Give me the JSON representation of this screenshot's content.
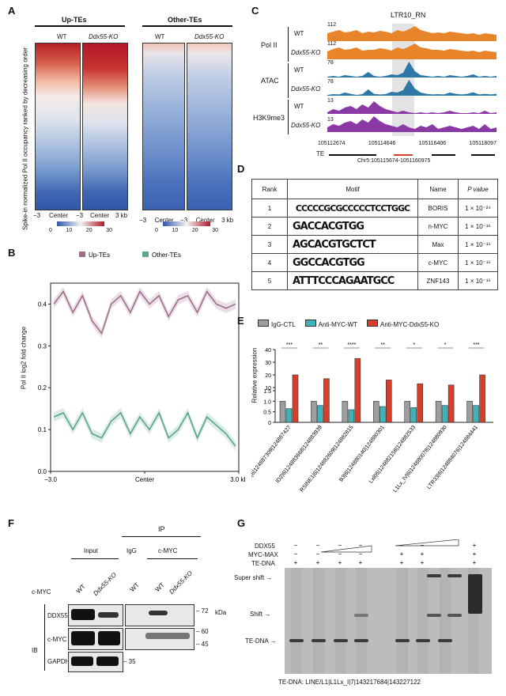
{
  "panels": {
    "A": "A",
    "B": "B",
    "C": "C",
    "D": "D",
    "E": "E",
    "F": "F",
    "G": "G"
  },
  "panelA": {
    "group_up": "Up-TEs",
    "group_other": "Other-TEs",
    "wt": "WT",
    "ko": "Ddx55-KO",
    "ylabel": "Spike-in normalized Pol II occupancy ranked by decreasing order",
    "axis_left": "−3",
    "axis_center": "Center",
    "axis_right": "3 kb",
    "axis_mid": "−3",
    "colorbar_up": [
      "0",
      "10",
      "20",
      "30"
    ],
    "colorbar_other": [
      "0",
      "10",
      "20",
      "30"
    ],
    "colors": {
      "high": "#b2182b",
      "low": "#2f58a8",
      "mid": "#f2f2f2"
    }
  },
  "panelB": {
    "legend": [
      "Up-TEs",
      "Other-TEs"
    ],
    "ylabel": "Pol II log2 fold change",
    "colors": {
      "up": "#a06e8c",
      "other": "#5aa38c"
    }
  },
  "panelC": {
    "title": "LTR10_RN",
    "groups": [
      "Pol II",
      "ATAC",
      "H3K9me3"
    ],
    "wt": "WT",
    "ko": "Ddx55-KO",
    "scales": [
      "112",
      "112",
      "78",
      "78",
      "13",
      "13"
    ],
    "coords": [
      "105112674",
      "105114646",
      "105116406",
      "105118097"
    ],
    "te": "TE",
    "region": "Chr5:105115674-1051160975",
    "colors": {
      "pol2": "#e8852b",
      "atac": "#2e78a8",
      "h3k9": "#8b3aa5"
    }
  },
  "panelD": {
    "headers": [
      "Rank",
      "Motif",
      "Name",
      "P value"
    ],
    "rows": [
      {
        "rank": "1",
        "motif": "CCCCCGCGCCCCCTCCTGGC",
        "name": "BORIS",
        "p": "1 × 10⁻²⁴"
      },
      {
        "rank": "2",
        "motif": "GACCACGTGG",
        "name": "n-MYC",
        "p": "1 × 10⁻¹⁶"
      },
      {
        "rank": "3",
        "motif": "AGCACGTGCTCT",
        "name": "Max",
        "p": "1 × 10⁻¹⁵"
      },
      {
        "rank": "4",
        "motif": "GGCCACGTGG",
        "name": "c-MYC",
        "p": "1 × 10⁻¹⁵"
      },
      {
        "rank": "5",
        "motif": "ATTTCCCAGAATGCC",
        "name": "ZNF143",
        "p": "1 × 10⁻¹⁵"
      }
    ]
  },
  "panelE": {
    "legend": [
      "IgG-CTL",
      "Anti-MYC-WT",
      "Anti-MYC-Ddx55-KO"
    ],
    "ylabel": "Relative expression",
    "colors": {
      "igg": "#9e9e9e",
      "wt": "#3fb3b8",
      "ko": "#d4402c"
    }
  },
  "panelF": {
    "ip": "IP",
    "input": "Input",
    "igg": "IgG",
    "cmyc": "c-MYC",
    "row_cmyc": "c-MYC",
    "wt": "WT",
    "ko": "Ddx55-KO",
    "ib": "IB",
    "rows": [
      "DDX55",
      "c-MYC",
      "GAPDH"
    ],
    "markers": [
      "72",
      "60",
      "45",
      "35"
    ],
    "kda": "kDa"
  },
  "panelG": {
    "labels": [
      "DDX55",
      "MYC-MAX",
      "TE-DNA"
    ],
    "super_shift": "Super shift",
    "shift": "Shift",
    "te_dna": "TE-DNA",
    "footer": "TE-DNA: LINE/L1|L1Lx_I|7|143217684|143227122"
  },
  "chart_data": [
    {
      "type": "line",
      "panel": "B",
      "x_ticks": [
        "−3.0",
        "Center",
        "3.0 kb"
      ],
      "ylim": [
        0.0,
        0.45
      ],
      "y_ticks": [
        "0.0",
        "0.1",
        "0.2",
        "0.3",
        "0.4"
      ],
      "series": [
        {
          "name": "Up-TEs",
          "values": [
            0.4,
            0.43,
            0.38,
            0.42,
            0.36,
            0.33,
            0.4,
            0.42,
            0.38,
            0.43,
            0.4,
            0.42,
            0.37,
            0.41,
            0.42,
            0.38,
            0.43,
            0.4,
            0.39,
            0.4
          ]
        },
        {
          "name": "Other-TEs",
          "values": [
            0.13,
            0.14,
            0.1,
            0.14,
            0.09,
            0.08,
            0.12,
            0.14,
            0.09,
            0.13,
            0.1,
            0.14,
            0.08,
            0.1,
            0.14,
            0.08,
            0.13,
            0.11,
            0.09,
            0.06
          ]
        }
      ]
    },
    {
      "type": "bar",
      "panel": "E",
      "categories": [
        "PB1|6|124887309|124887427",
        "ID2|6|124883668|124883939",
        "RSINE1|6|124882609|124882815",
        "B3|6|124880140|124880301",
        "Lx8|6|124882158|124882533",
        "L1Lx_IV|6|124880078|124880930",
        "LTR33|6|124884076|124884441"
      ],
      "significance": [
        "***",
        "**",
        "****",
        "**",
        "*",
        "*",
        "***"
      ],
      "ylim": [
        0,
        50
      ],
      "y_ticks": [
        "0",
        "0.5",
        "1.0",
        "1.5",
        "10",
        "20",
        "30",
        "40"
      ],
      "series": [
        {
          "name": "IgG-CTL",
          "values": [
            1.0,
            1.0,
            1.0,
            1.0,
            1.0,
            1.0,
            1.0
          ]
        },
        {
          "name": "Anti-MYC-WT",
          "values": [
            0.65,
            0.8,
            0.6,
            0.75,
            0.7,
            0.8,
            0.8
          ]
        },
        {
          "name": "Anti-MYC-Ddx55-KO",
          "values": [
            20,
            17,
            33,
            16,
            13,
            12,
            20
          ]
        }
      ]
    }
  ]
}
